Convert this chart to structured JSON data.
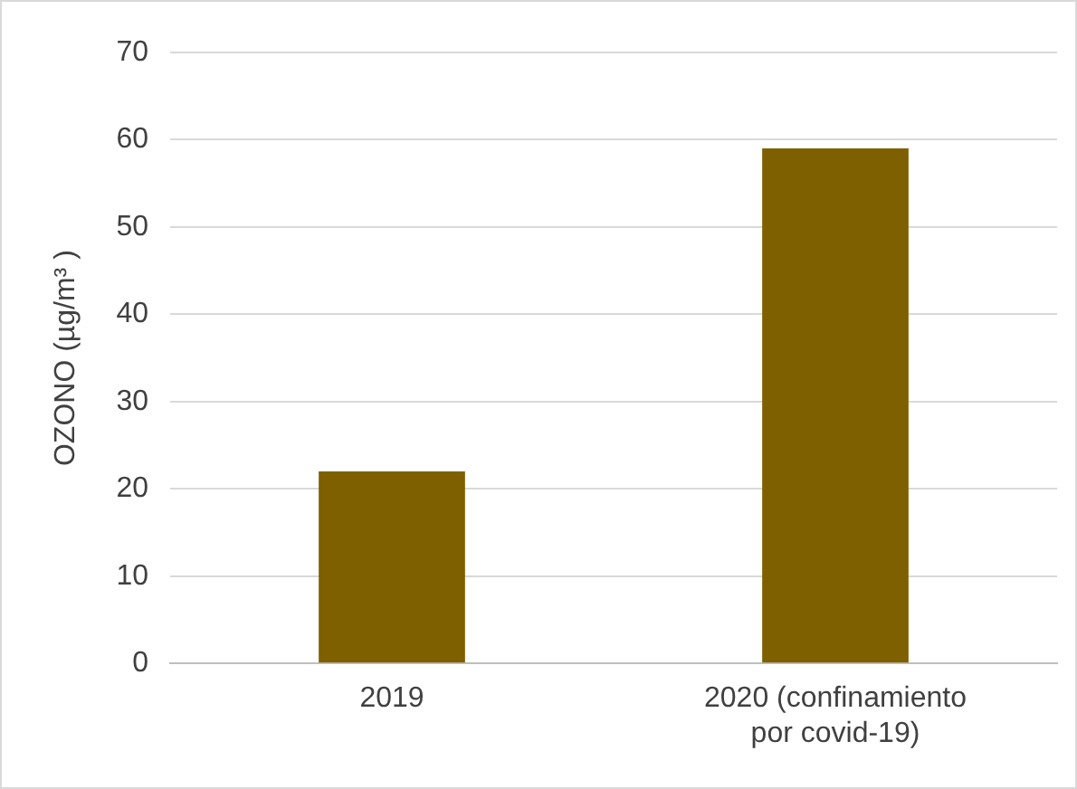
{
  "chart_data": {
    "type": "bar",
    "ylabel": "OZONO (µg/m³ )",
    "categories": [
      "2019",
      "2020 (confinamiento por covid-19)"
    ],
    "values": [
      22,
      59
    ],
    "color": "#7f6000",
    "ylim": [
      0,
      70
    ],
    "yticks": [
      0,
      10,
      20,
      30,
      40,
      50,
      60,
      70
    ],
    "grid": "y"
  }
}
